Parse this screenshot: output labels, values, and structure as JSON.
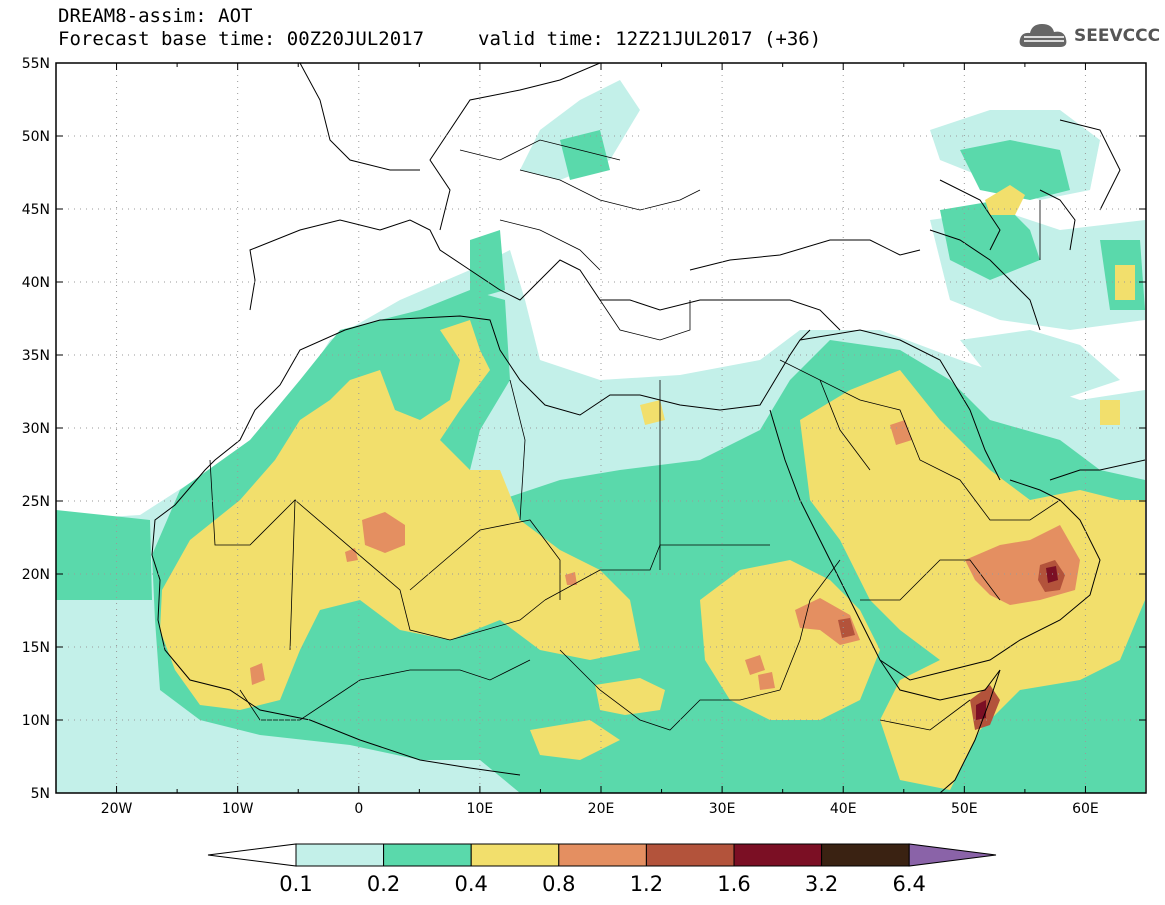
{
  "header": {
    "title": "DREAM8-assim: AOT",
    "base_time": "Forecast base time: 00Z20JUL2017",
    "valid_time": "valid time: 12Z21JUL2017 (+36)"
  },
  "logo": {
    "text": "SEEVCCC",
    "icon": "cloud-icon"
  },
  "map": {
    "lon_range": [
      -25,
      65
    ],
    "lat_range": [
      5,
      55
    ],
    "lat_ticks": [
      "5N",
      "10N",
      "15N",
      "20N",
      "25N",
      "30N",
      "35N",
      "40N",
      "45N",
      "50N",
      "55N"
    ],
    "lon_ticks": [
      "20W",
      "10W",
      "0",
      "10E",
      "20E",
      "30E",
      "40E",
      "50E",
      "60E"
    ],
    "grid": true
  },
  "colorbar": {
    "levels": [
      "0.1",
      "0.2",
      "0.4",
      "0.8",
      "1.2",
      "1.6",
      "3.2",
      "6.4"
    ],
    "colors": [
      "#c3f0e9",
      "#5ad9ab",
      "#f2df6c",
      "#e48f61",
      "#b3533b",
      "#7b0f24",
      "#3a2212"
    ],
    "extend_low_color": "#ffffff",
    "extend_high_color": "#8a63a8"
  }
}
